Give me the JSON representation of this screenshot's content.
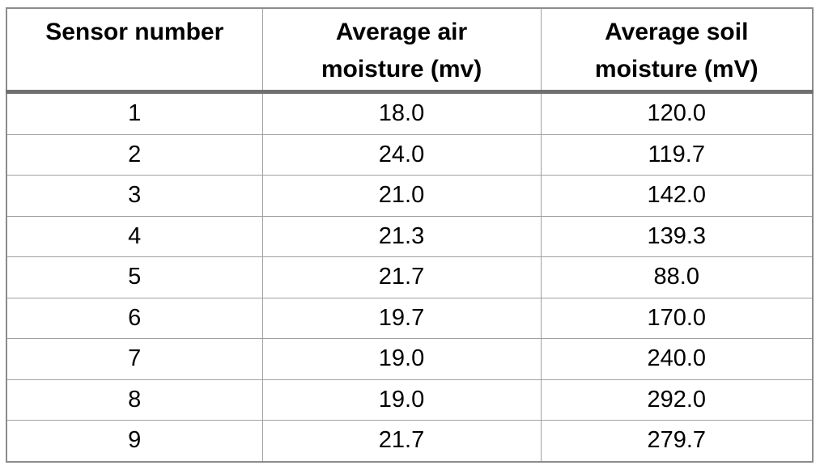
{
  "table": {
    "columns": [
      {
        "lines": [
          "Sensor number",
          ""
        ]
      },
      {
        "lines": [
          "Average air",
          "moisture (mv)"
        ]
      },
      {
        "lines": [
          "Average soil",
          "moisture (mV)"
        ]
      }
    ],
    "rows": [
      [
        "1",
        "18.0",
        "120.0"
      ],
      [
        "2",
        "24.0",
        "119.7"
      ],
      [
        "3",
        "21.0",
        "142.0"
      ],
      [
        "4",
        "21.3",
        "139.3"
      ],
      [
        "5",
        "21.7",
        "88.0"
      ],
      [
        "6",
        "19.7",
        "170.0"
      ],
      [
        "7",
        "19.0",
        "240.0"
      ],
      [
        "8",
        "19.0",
        "292.0"
      ],
      [
        "9",
        "21.7",
        "279.7"
      ]
    ]
  },
  "colors": {
    "grid_line": "#a0a0a0",
    "header_rule": "#707070",
    "outer_border": "#8c8c8c",
    "text": "#000000",
    "background": "#ffffff"
  }
}
